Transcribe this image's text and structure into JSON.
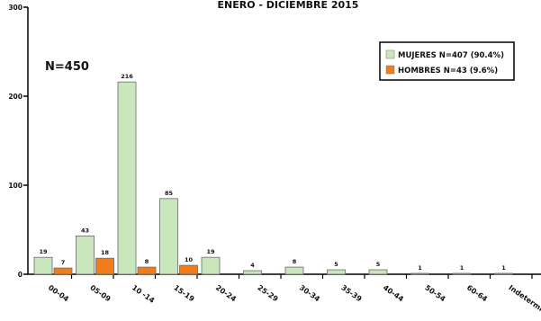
{
  "chart_data": {
    "type": "bar",
    "title": "ENERO - DICIEMBRE 2015",
    "annotation": "N=450",
    "categories": [
      "00-04",
      "05-09",
      "10 -14",
      "15-19",
      "20-24",
      "25-29",
      "30-34",
      "35-39",
      "40-44",
      "50-54",
      "60-64",
      "Indetermin."
    ],
    "series": [
      {
        "name": "MUJERES N=407 (90.4%)",
        "color": "#c9e6bc",
        "values": [
          19,
          43,
          216,
          85,
          19,
          4,
          8,
          5,
          5,
          1,
          1,
          1
        ]
      },
      {
        "name": "HOMBRES N=43 (9.6%)",
        "color": "#f07d1a",
        "values": [
          7,
          18,
          8,
          10,
          null,
          null,
          null,
          null,
          null,
          null,
          null,
          null
        ]
      }
    ],
    "ylim": [
      0,
      300
    ],
    "yticks": [
      0,
      100,
      200,
      300
    ],
    "grid": false,
    "legend_position": "top-right"
  }
}
